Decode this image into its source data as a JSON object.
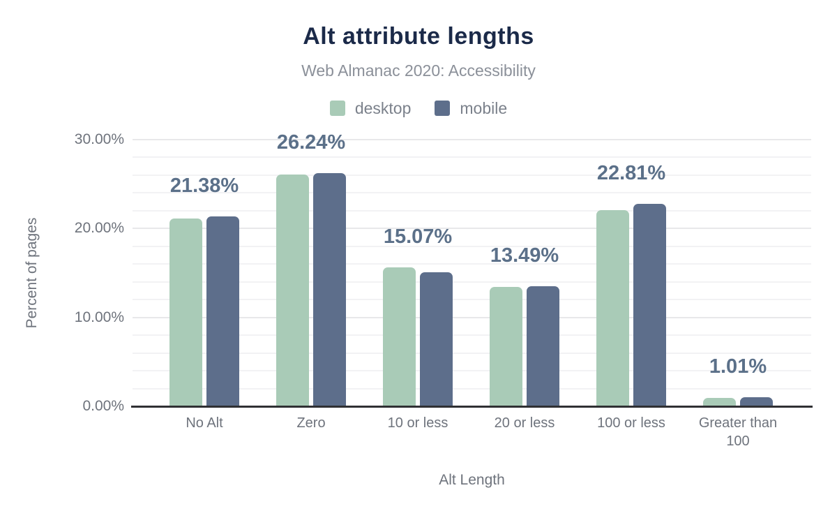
{
  "header": {
    "title": "Alt attribute lengths",
    "subtitle": "Web Almanac 2020: Accessibility"
  },
  "legend": {
    "items": [
      {
        "label": "desktop",
        "color": "#a9cbb7"
      },
      {
        "label": "mobile",
        "color": "#5d6e8b"
      }
    ]
  },
  "axes": {
    "y_title": "Percent of pages",
    "x_title": "Alt Length"
  },
  "chart_data": {
    "type": "bar",
    "title": "Alt attribute lengths",
    "subtitle": "Web Almanac 2020: Accessibility",
    "categories": [
      "No Alt",
      "Zero",
      "10 or less",
      "20 or less",
      "100 or less",
      "Greater than 100"
    ],
    "series": [
      {
        "name": "desktop",
        "color": "#a9cbb7",
        "values": [
          21.14,
          26.08,
          15.63,
          13.44,
          22.06,
          0.93
        ]
      },
      {
        "name": "mobile",
        "color": "#5d6e8b",
        "values": [
          21.38,
          26.24,
          15.07,
          13.49,
          22.81,
          1.01
        ]
      }
    ],
    "data_labels": [
      "21.38%",
      "26.24%",
      "15.07%",
      "13.49%",
      "22.81%",
      "1.01%"
    ],
    "xlabel": "Alt Length",
    "ylabel": "Percent of pages",
    "ylim": [
      0,
      30
    ],
    "yticks": [
      {
        "value": 0,
        "label": "0.00%"
      },
      {
        "value": 10,
        "label": "10.00%"
      },
      {
        "value": 20,
        "label": "20.00%"
      },
      {
        "value": 30,
        "label": "30.00%"
      }
    ],
    "minor_gridline_step": 2,
    "major_gridline_step": 10,
    "grid": true,
    "legend_position": "top"
  },
  "colors": {
    "title": "#1b2a49",
    "subtitle": "#8b9099",
    "axis_text": "#6e737c",
    "data_label": "#5b7089",
    "gridline_minor": "#f2f2f4",
    "gridline_major": "#e8e8ea",
    "axis_line": "#2f3033",
    "background": "#ffffff"
  }
}
